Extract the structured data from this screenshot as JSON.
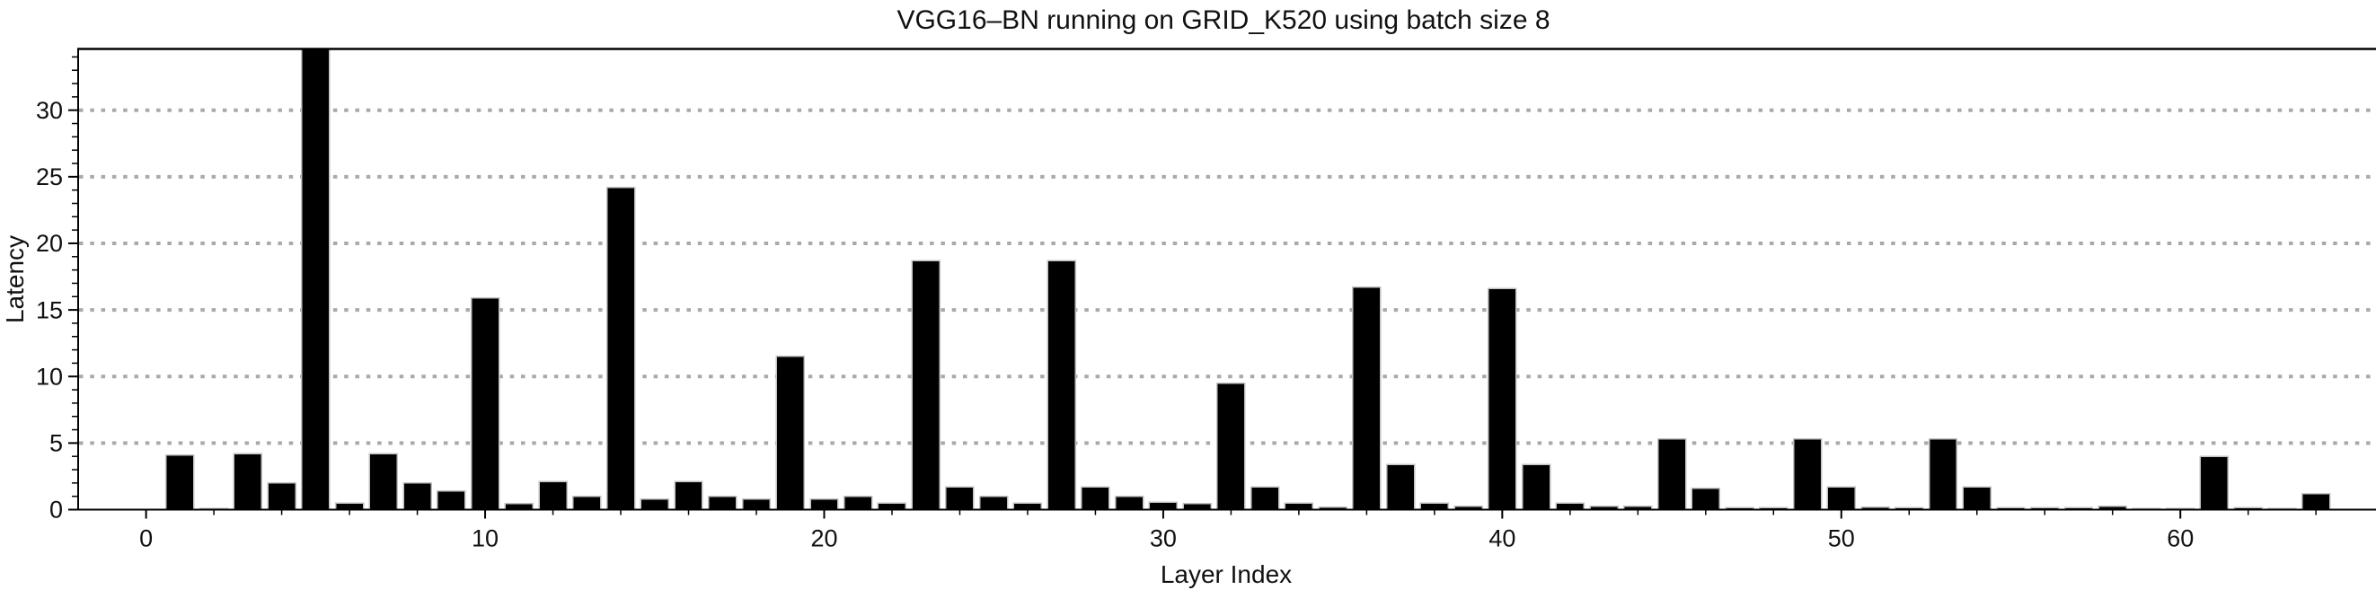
{
  "title": "VGG16–BN running on GRID_K520 using batch size 8",
  "chart_data": {
    "type": "bar",
    "title": "VGG16–BN running on GRID_K520 using batch size 8",
    "xlabel": "Layer Index",
    "ylabel": "Latency",
    "x": [
      1,
      2,
      3,
      4,
      5,
      6,
      7,
      8,
      9,
      10,
      11,
      12,
      13,
      14,
      15,
      16,
      17,
      18,
      19,
      20,
      21,
      22,
      23,
      24,
      25,
      26,
      27,
      28,
      29,
      30,
      31,
      32,
      33,
      34,
      35,
      36,
      37,
      38,
      39,
      40,
      41,
      42,
      43,
      44,
      45,
      46,
      47,
      48,
      49,
      50,
      51,
      52,
      53,
      54,
      55,
      56,
      57,
      58,
      59,
      60,
      61,
      62,
      63,
      64
    ],
    "values": [
      4.1,
      0.1,
      4.2,
      2.0,
      34.6,
      0.5,
      4.2,
      2.0,
      1.4,
      15.9,
      0.45,
      2.1,
      1.0,
      24.2,
      0.8,
      2.1,
      1.0,
      0.8,
      11.5,
      0.8,
      1.0,
      0.5,
      18.7,
      1.7,
      1.0,
      0.5,
      18.7,
      1.7,
      1.0,
      0.55,
      0.45,
      9.5,
      1.7,
      0.5,
      0.2,
      16.7,
      3.4,
      0.5,
      0.25,
      16.6,
      3.4,
      0.5,
      0.25,
      0.25,
      5.3,
      1.6,
      0.15,
      0.15,
      5.3,
      1.7,
      0.2,
      0.15,
      5.3,
      1.7,
      0.15,
      0.15,
      0.15,
      0.25,
      0.1,
      0.1,
      4.0,
      0.15,
      0.1,
      1.2
    ],
    "xlim": [
      -2.03,
      65.77
    ],
    "ylim": [
      0,
      34.6
    ],
    "x_major_ticks": [
      0,
      10,
      20,
      30,
      40,
      50,
      60
    ],
    "y_major_ticks": [
      0,
      5,
      10,
      15,
      20,
      25,
      30
    ],
    "x_minor_step": 2,
    "y_minor_step": 1,
    "grid": {
      "axis": "y",
      "at": [
        5,
        10,
        15,
        20,
        25,
        30
      ],
      "style": "dotted",
      "color": "#a9a9a9"
    },
    "legend": null,
    "bar": {
      "color": "#000000",
      "edge_color": "#c2c2c2",
      "width_units": 0.82
    },
    "note": "bar at layer index 5 reaches the top of the visible axis (clipped at ~34.6)"
  }
}
